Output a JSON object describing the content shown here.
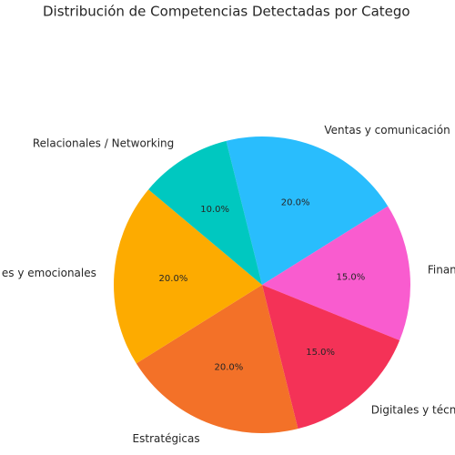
{
  "chart_data": {
    "type": "pie",
    "title": "Distribución de Competencias Detectadas por Catego",
    "categories": [
      "Ventas y comunicación",
      "Finan",
      "Digitales y técn",
      "Estratégicas",
      "es y emocionales",
      "Relacionales / Networking"
    ],
    "values": [
      20,
      15,
      15,
      20,
      20,
      10
    ],
    "value_labels": [
      "20.0%",
      "15.0%",
      "15.0%",
      "20.0%",
      "20.0%",
      "10.0%"
    ],
    "colors": [
      "#29bdfd",
      "#f95ccf",
      "#f43257",
      "#f37128",
      "#fdab00",
      "#00c8c0"
    ]
  }
}
